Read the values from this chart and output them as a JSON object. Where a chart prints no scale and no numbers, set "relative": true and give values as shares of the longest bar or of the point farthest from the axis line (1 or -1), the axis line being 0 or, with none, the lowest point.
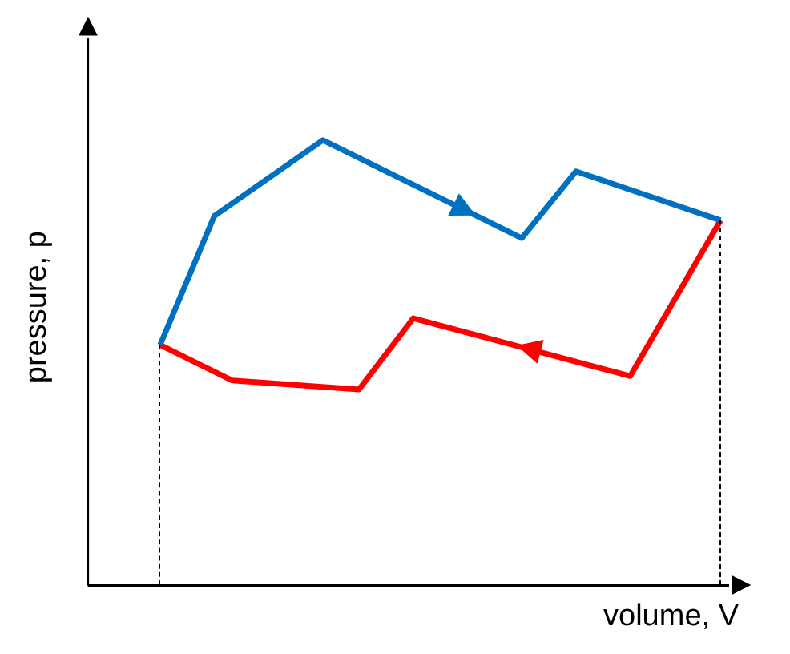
{
  "chart_data": {
    "type": "line",
    "relative": true,
    "xlabel": "volume, V",
    "ylabel": "pressure, p",
    "grid": false,
    "legend": false,
    "marker": "none",
    "line_style": "solid",
    "categories": [
      null,
      null,
      null,
      null,
      null,
      null,
      null,
      null,
      null,
      null,
      null,
      null,
      null,
      null,
      null,
      null,
      null,
      null,
      null,
      null,
      null,
      null,
      null,
      null,
      null,
      null,
      null,
      null,
      null,
      null,
      null,
      null,
      null,
      null,
      null,
      null,
      null
    ],
    "series": [
      {
        "color": "#0070c0",
        "values": [
          null,
          null,
          null,
          null,
          0.54,
          null,
          null,
          0.83,
          null,
          null,
          null,
          null,
          null,
          1,
          null,
          null,
          null,
          null,
          null,
          null,
          null,
          null,
          null,
          null,
          0.78,
          null,
          null,
          0.93,
          null,
          null,
          null,
          null,
          null,
          null,
          null,
          0.82,
          null
        ]
      },
      {
        "color": "#ff0000",
        "values": [
          null,
          null,
          null,
          null,
          0.54,
          null,
          null,
          null,
          0.46,
          null,
          null,
          null,
          null,
          null,
          null,
          0.44,
          null,
          null,
          0.6,
          null,
          null,
          null,
          null,
          null,
          null,
          null,
          null,
          null,
          null,
          null,
          0.47,
          null,
          null,
          null,
          null,
          0.82,
          null
        ]
      }
    ]
  }
}
